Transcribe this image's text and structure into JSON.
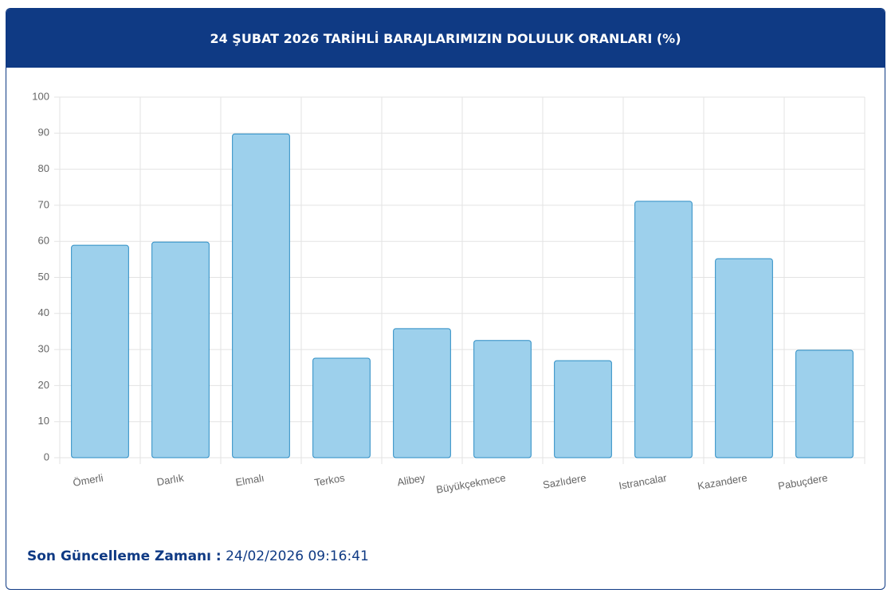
{
  "chart_data": {
    "type": "bar",
    "title": "24 ŞUBAT 2026 TARİHLİ BARAJLARIMIZIN DOLULUK ORANLARI (%)",
    "categories": [
      "Ömerli",
      "Darlık",
      "Elmalı",
      "Terkos",
      "Alibey",
      "Büyükçekmece",
      "Sazlıdere",
      "Istrancalar",
      "Kazandere",
      "Pabuçdere"
    ],
    "values": [
      58.9,
      59.8,
      89.8,
      27.6,
      35.8,
      32.5,
      26.9,
      71.1,
      55.2,
      29.8
    ],
    "color": "#9dd0ec",
    "border_color": "#2a8cc4",
    "ylim": [
      0,
      100
    ],
    "yticks": [
      0,
      10,
      20,
      30,
      40,
      50,
      60,
      70,
      80,
      90,
      100
    ],
    "grid": true
  },
  "footer": {
    "label": "Son Güncelleme Zamanı :",
    "value": "24/02/2026 09:16:41"
  }
}
